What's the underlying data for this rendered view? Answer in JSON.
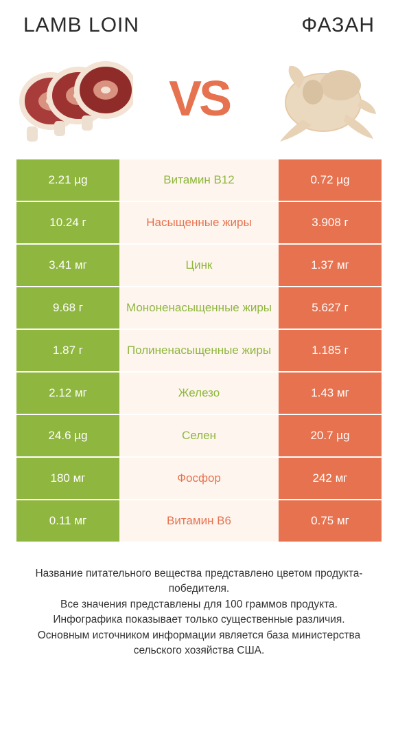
{
  "colors": {
    "left_bg": "#8fb63e",
    "right_bg": "#e6724f",
    "mid_bg": "#fef6ee",
    "left_text": "#ffffff",
    "right_text": "#ffffff",
    "label_left_color": "#8fb63e",
    "label_right_color": "#e6724f",
    "vs_color": "#e6724f"
  },
  "header": {
    "left_title": "LAMB LOIN",
    "right_title": "ФАЗАН"
  },
  "vs_label": "VS",
  "rows": [
    {
      "left": "2.21 µg",
      "label": "Витамин B12",
      "right": "0.72 µg",
      "winner": "left"
    },
    {
      "left": "10.24 г",
      "label": "Насыщенные жиры",
      "right": "3.908 г",
      "winner": "right"
    },
    {
      "left": "3.41 мг",
      "label": "Цинк",
      "right": "1.37 мг",
      "winner": "left"
    },
    {
      "left": "9.68 г",
      "label": "Мононенасыщенные жиры",
      "right": "5.627 г",
      "winner": "left"
    },
    {
      "left": "1.87 г",
      "label": "Полиненасыщенные жиры",
      "right": "1.185 г",
      "winner": "left"
    },
    {
      "left": "2.12 мг",
      "label": "Железо",
      "right": "1.43 мг",
      "winner": "left"
    },
    {
      "left": "24.6 µg",
      "label": "Селен",
      "right": "20.7 µg",
      "winner": "left"
    },
    {
      "left": "180 мг",
      "label": "Фосфор",
      "right": "242 мг",
      "winner": "right"
    },
    {
      "left": "0.11 мг",
      "label": "Витамин B6",
      "right": "0.75 мг",
      "winner": "right"
    }
  ],
  "footer_lines": [
    "Название питательного вещества представлено цветом продукта-победителя.",
    "Все значения представлены для 100 граммов продукта.",
    "Инфографика показывает только существенные различия.",
    "Основным источником информации является база министерства сельского хозяйства США."
  ]
}
